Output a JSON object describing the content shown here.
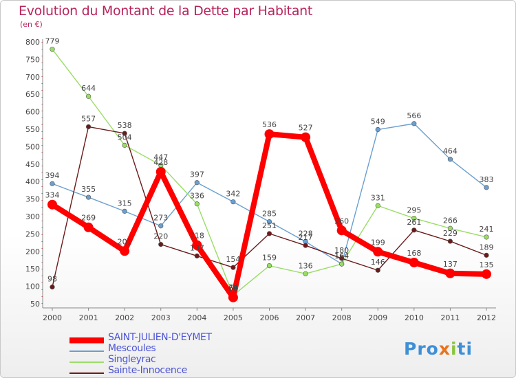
{
  "header": {
    "title": "Evolution du Montant de la Dette par Habitant",
    "unit": "(en €)"
  },
  "logo": {
    "part1": "Pro",
    "part2": "x",
    "part3": "i",
    "part4": "ti"
  },
  "chart_data": {
    "type": "line",
    "title": "Evolution du Montant de la Dette par Habitant",
    "ylabel": "(en €)",
    "xlabel": "",
    "ylim": [
      50,
      800
    ],
    "y_ticks": [
      50,
      100,
      150,
      200,
      250,
      300,
      350,
      400,
      450,
      500,
      550,
      600,
      650,
      700,
      750,
      800
    ],
    "grid": false,
    "legend_position": "bottom-left",
    "x": [
      "2000",
      "2001",
      "2002",
      "2003",
      "2004",
      "2005",
      "2006",
      "2007",
      "2008",
      "2009",
      "2010",
      "2011",
      "2012"
    ],
    "series": [
      {
        "name": "SAINT-JULIEN-D'EYMET",
        "color": "#ff0000",
        "emphasis": true,
        "values": [
          334,
          269,
          201,
          428,
          218,
          68,
          536,
          527,
          260,
          199,
          168,
          137,
          135
        ]
      },
      {
        "name": "Mescoules",
        "color": "#6a9fd0",
        "emphasis": false,
        "values": [
          394,
          355,
          315,
          273,
          397,
          342,
          285,
          228,
          164,
          549,
          566,
          464,
          383
        ]
      },
      {
        "name": "Singleyrac",
        "color": "#99dd66",
        "emphasis": false,
        "values": [
          779,
          644,
          504,
          447,
          336,
          74,
          159,
          136,
          164,
          331,
          295,
          266,
          241
        ]
      },
      {
        "name": "Sainte-Innocence",
        "color": "#6b1a1a",
        "emphasis": false,
        "values": [
          98,
          557,
          538,
          220,
          187,
          154,
          251,
          217,
          180,
          146,
          261,
          229,
          189
        ]
      }
    ]
  }
}
